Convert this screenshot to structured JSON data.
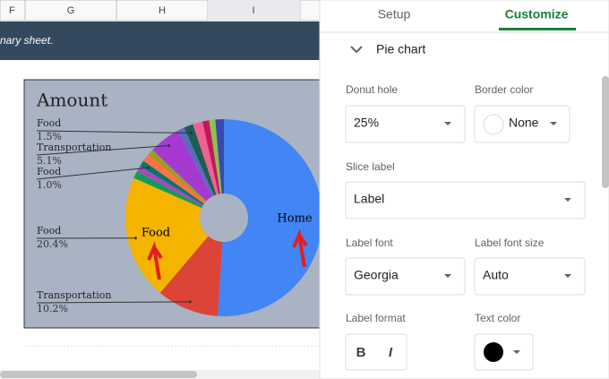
{
  "sheet": {
    "columns": [
      "F",
      "G",
      "H",
      "I"
    ],
    "banner": "nary sheet.",
    "chart": {
      "type": "pie",
      "title": "Amount",
      "categories": [
        "Home",
        "Transportation",
        "Food",
        null,
        null,
        "Food",
        null,
        null,
        "Transportation",
        null,
        "Food",
        null,
        null,
        null,
        null
      ],
      "values": [
        51,
        10.2,
        20.4,
        1.2,
        1.0,
        1.0,
        1.3,
        1.0,
        5.1,
        1.2,
        1.5,
        1.6,
        1.1,
        1.0,
        1.4
      ],
      "value_labels": [
        null,
        "10.2%",
        "20.4%",
        null,
        null,
        "1.0%",
        null,
        null,
        "5.1%",
        null,
        "1.5%",
        null,
        null,
        null,
        null
      ],
      "colors": [
        "#4285f4",
        "#db4437",
        "#f4b400",
        "#0f9d58",
        "#ab47bc",
        "#00796b",
        "#ff7043",
        "#9e9d24",
        "#a63ad0",
        "#5c6bc0",
        "#1b5e54",
        "#f06292",
        "#c2185b",
        "#8bc34a",
        "#3949ab"
      ]
    }
  },
  "editor": {
    "tabs": [
      "Setup",
      "Customize"
    ],
    "section": "Pie chart",
    "donut_hole": {
      "label": "Donut hole",
      "value": "25%"
    },
    "border_color": {
      "label": "Border color",
      "value": "None"
    },
    "slice_label": {
      "label": "Slice label",
      "value": "Label"
    },
    "label_font": {
      "label": "Label font",
      "value": "Georgia"
    },
    "label_font_size": {
      "label": "Label font size",
      "value": "Auto"
    },
    "label_format": {
      "label": "Label format",
      "bold": "B",
      "italic": "I"
    },
    "text_color": {
      "label": "Text color"
    }
  }
}
